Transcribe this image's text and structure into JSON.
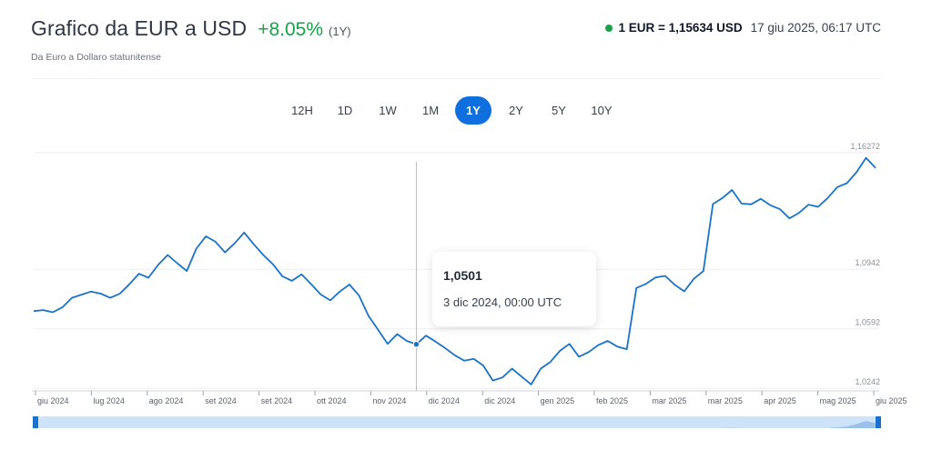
{
  "header": {
    "title": "Grafico da EUR a USD",
    "change": "+8.05%",
    "period": "(1Y)",
    "subtitle": "Da Euro a Dollaro statunitense",
    "rate": "1 EUR = 1,15634 USD",
    "timestamp": "17 giu 2025, 06:17 UTC"
  },
  "tabs": [
    {
      "label": "12H",
      "active": false
    },
    {
      "label": "1D",
      "active": false
    },
    {
      "label": "1W",
      "active": false
    },
    {
      "label": "1M",
      "active": false
    },
    {
      "label": "1Y",
      "active": true
    },
    {
      "label": "2Y",
      "active": false
    },
    {
      "label": "5Y",
      "active": false
    },
    {
      "label": "10Y",
      "active": false
    }
  ],
  "tooltip": {
    "value": "1,0501",
    "date": "3 dic 2024, 00:00 UTC"
  },
  "colors": {
    "line": "#1a73c9",
    "accent": "#0f6fde",
    "positive": "#16a34a"
  },
  "chart_data": {
    "type": "line",
    "title": "",
    "xlabel": "",
    "ylabel": "",
    "ylim": [
      1.0243,
      1.1627
    ],
    "grid": true,
    "y_ticks": [
      {
        "value": 1.16272,
        "label": "1,16272"
      },
      {
        "value": 1.0942,
        "label": "1,0942"
      },
      {
        "value": 1.0592,
        "label": "1,0592"
      },
      {
        "value": 1.0242,
        "label": "1,0242"
      }
    ],
    "x_ticks": [
      "giu 2024",
      "lug 2024",
      "ago 2024",
      "set 2024",
      "set 2024",
      "ott 2024",
      "nov 2024",
      "dic 2024",
      "dic 2024",
      "gen 2025",
      "feb 2025",
      "mar 2025",
      "mar 2025",
      "apr 2025",
      "mag 2025",
      "giu 2025"
    ],
    "hover_index": 40,
    "series": [
      {
        "values": [
          1.0696,
          1.0702,
          1.0689,
          1.0718,
          1.0774,
          1.0793,
          1.0811,
          1.0799,
          1.0774,
          1.0798,
          1.0854,
          1.0916,
          1.0892,
          1.0967,
          1.1026,
          1.0978,
          1.0932,
          1.1063,
          1.1136,
          1.1104,
          1.1041,
          1.1094,
          1.1158,
          1.1089,
          1.1026,
          1.0972,
          1.0901,
          1.0874,
          1.0912,
          1.0855,
          1.0794,
          1.0759,
          1.0811,
          1.0852,
          1.0788,
          1.0668,
          1.0586,
          1.0503,
          1.0561,
          1.0521,
          1.0501,
          1.0552,
          1.0517,
          1.0479,
          1.0437,
          1.0405,
          1.0415,
          1.0376,
          1.0288,
          1.0306,
          1.0358,
          1.0311,
          1.0265,
          1.0358,
          1.0397,
          1.0462,
          1.0503,
          1.0428,
          1.0455,
          1.0496,
          1.0521,
          1.0488,
          1.0472,
          1.0832,
          1.0856,
          1.0894,
          1.0903,
          1.0851,
          1.0812,
          1.0886,
          1.0931,
          1.1325,
          1.1361,
          1.1408,
          1.1328,
          1.1324,
          1.1356,
          1.1318,
          1.1295,
          1.1241,
          1.1274,
          1.1322,
          1.1309,
          1.1361,
          1.1425,
          1.1448,
          1.1512,
          1.1597,
          1.1538
        ]
      }
    ]
  },
  "navigator": {
    "label": "range-navigator"
  }
}
